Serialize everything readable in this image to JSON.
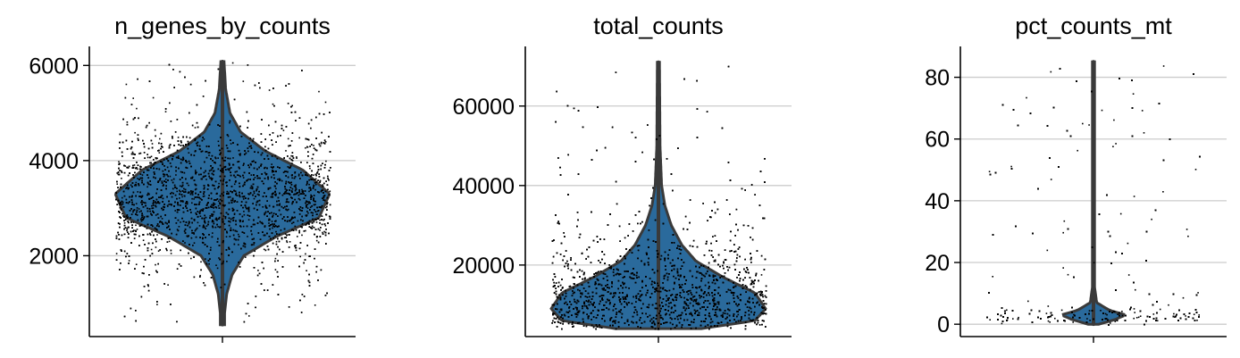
{
  "chart_data": [
    {
      "type": "violin",
      "title": "n_genes_by_counts",
      "ylim": [
        300,
        6400
      ],
      "yticks": [
        2000,
        4000,
        6000
      ],
      "ytick_labels": [
        "2000",
        "4000",
        "6000"
      ],
      "grid": true,
      "violin_color": "#2a6a9c",
      "point_color": "#000000",
      "summary": {
        "min": 550,
        "median": 3300,
        "max": 6080
      },
      "density_profile": [
        {
          "y": 550,
          "w": 0.02
        },
        {
          "y": 800,
          "w": 0.02
        },
        {
          "y": 1200,
          "w": 0.04
        },
        {
          "y": 1600,
          "w": 0.09
        },
        {
          "y": 2000,
          "w": 0.2
        },
        {
          "y": 2400,
          "w": 0.5
        },
        {
          "y": 2800,
          "w": 0.9
        },
        {
          "y": 3300,
          "w": 1.0
        },
        {
          "y": 3800,
          "w": 0.75
        },
        {
          "y": 4200,
          "w": 0.4
        },
        {
          "y": 4600,
          "w": 0.17
        },
        {
          "y": 5000,
          "w": 0.07
        },
        {
          "y": 5500,
          "w": 0.03
        },
        {
          "y": 6080,
          "w": 0.015
        }
      ]
    },
    {
      "type": "violin",
      "title": "total_counts",
      "ylim": [
        2000,
        75000
      ],
      "yticks": [
        20000,
        40000,
        60000
      ],
      "ytick_labels": [
        "20000",
        "40000",
        "60000"
      ],
      "grid": true,
      "violin_color": "#2a6a9c",
      "point_color": "#000000",
      "summary": {
        "min": 4000,
        "median": 13000,
        "max": 71000
      },
      "density_profile": [
        {
          "y": 4000,
          "w": 0.4
        },
        {
          "y": 6000,
          "w": 0.9
        },
        {
          "y": 9000,
          "w": 1.0
        },
        {
          "y": 13000,
          "w": 0.9
        },
        {
          "y": 17000,
          "w": 0.6
        },
        {
          "y": 21000,
          "w": 0.35
        },
        {
          "y": 25000,
          "w": 0.22
        },
        {
          "y": 30000,
          "w": 0.12
        },
        {
          "y": 35000,
          "w": 0.06
        },
        {
          "y": 40000,
          "w": 0.03
        },
        {
          "y": 50000,
          "w": 0.015
        },
        {
          "y": 71000,
          "w": 0.01
        }
      ]
    },
    {
      "type": "violin",
      "title": "pct_counts_mt",
      "ylim": [
        -4,
        90
      ],
      "yticks": [
        0,
        20,
        40,
        60,
        80
      ],
      "ytick_labels": [
        "0",
        "20",
        "40",
        "60",
        "80"
      ],
      "grid": true,
      "violin_color": "#2a6a9c",
      "point_color": "#000000",
      "summary": {
        "min": 0,
        "median": 3,
        "max": 85
      },
      "density_profile": [
        {
          "y": 0,
          "w": 0.05
        },
        {
          "y": 1.5,
          "w": 0.2
        },
        {
          "y": 3,
          "w": 0.3
        },
        {
          "y": 4.5,
          "w": 0.15
        },
        {
          "y": 7,
          "w": 0.03
        },
        {
          "y": 12,
          "w": 0.01
        },
        {
          "y": 85,
          "w": 0.01
        }
      ]
    }
  ]
}
